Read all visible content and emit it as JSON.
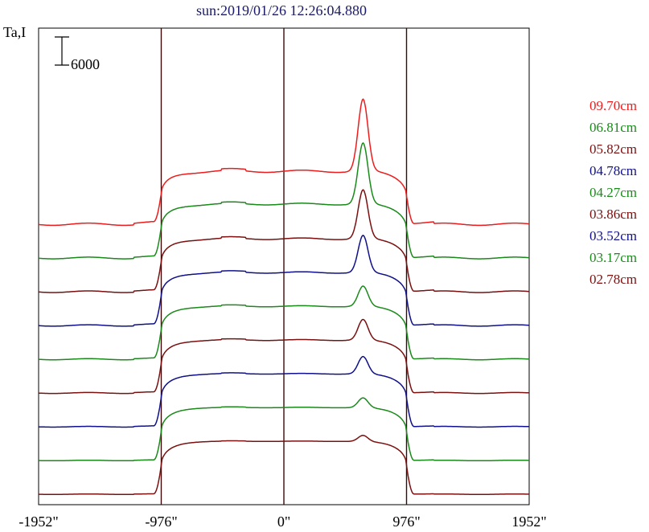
{
  "chart_data": {
    "type": "line",
    "title": "sun:2019/01/26 12:26:04.880",
    "ylabel": "Ta,I",
    "scale_bar_label": "6000",
    "scale_bar_value": 6000,
    "x_ticks": [
      {
        "value": -1952,
        "label": "-1952\""
      },
      {
        "value": -976,
        "label": "-976\""
      },
      {
        "value": 0,
        "label": "0\""
      },
      {
        "value": 976,
        "label": "976\""
      },
      {
        "value": 1952,
        "label": "1952\""
      }
    ],
    "vertical_lines": [
      -976,
      0,
      976
    ],
    "xlim": [
      -1952,
      1952
    ],
    "series_offset": 7200,
    "series": [
      {
        "name": "09.70cm",
        "color": "#ee1c1c",
        "profile": {
          "off": 0,
          "quiet": 3000,
          "disk": 11300,
          "peak": 26600
        }
      },
      {
        "name": "06.81cm",
        "color": "#1a8a1a",
        "profile": {
          "off": 0,
          "quiet": 2300,
          "disk": 11500,
          "peak": 24500
        }
      },
      {
        "name": "05.82cm",
        "color": "#7a1010",
        "profile": {
          "off": 0,
          "quiet": 2200,
          "disk": 11300,
          "peak": 21700
        }
      },
      {
        "name": "04.78cm",
        "color": "#10108a",
        "profile": {
          "off": 0,
          "quiet": 1900,
          "disk": 11300,
          "peak": 19200
        }
      },
      {
        "name": "04.27cm",
        "color": "#1a8a1a",
        "profile": {
          "off": 0,
          "quiet": 1500,
          "disk": 11300,
          "peak": 15600
        }
      },
      {
        "name": "03.86cm",
        "color": "#7a1010",
        "profile": {
          "off": 0,
          "quiet": 1300,
          "disk": 11300,
          "peak": 15700
        }
      },
      {
        "name": "03.52cm",
        "color": "#10108a",
        "profile": {
          "off": 0,
          "quiet": 1000,
          "disk": 11300,
          "peak": 15000
        }
      },
      {
        "name": "03.17cm",
        "color": "#1a8a1a",
        "profile": {
          "off": 0,
          "quiet": 700,
          "disk": 11300,
          "peak": 13400
        }
      },
      {
        "name": "02.78cm",
        "color": "#7a1010",
        "profile": {
          "off": 0,
          "quiet": 500,
          "disk": 11300,
          "peak": 12600
        }
      }
    ]
  }
}
